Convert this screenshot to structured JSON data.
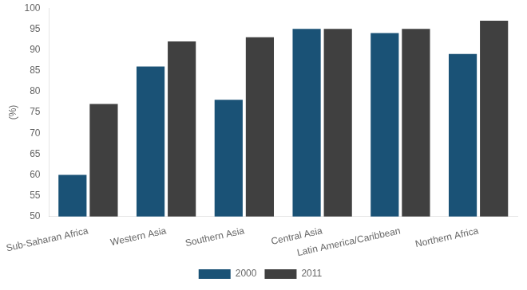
{
  "chart_data": {
    "type": "bar",
    "categories": [
      "Sub-Saharan Africa",
      "Western Asia",
      "Southern Asia",
      "Central Asia",
      "Latin America/Caribbean",
      "Northern Africa"
    ],
    "series": [
      {
        "name": "2000",
        "color": "#1a5276",
        "values": [
          60,
          86,
          78,
          95,
          94,
          89
        ]
      },
      {
        "name": "2011",
        "color": "#404040",
        "values": [
          77,
          92,
          93,
          95,
          95,
          97
        ]
      }
    ],
    "ylabel": "(%)",
    "ylim": [
      50,
      100
    ],
    "yticks": [
      50,
      55,
      60,
      65,
      70,
      75,
      80,
      85,
      90,
      95,
      100
    ],
    "grid": false,
    "legend": "bottom"
  }
}
